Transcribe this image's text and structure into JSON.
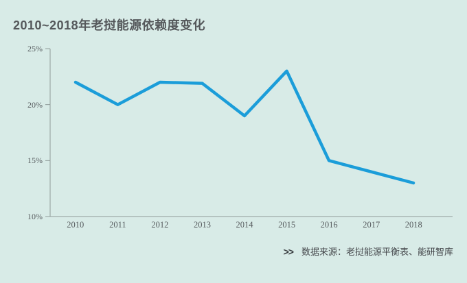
{
  "chart_data": {
    "type": "line",
    "title": "2010~2018年老挝能源依赖度变化",
    "categories": [
      "2010",
      "2011",
      "2012",
      "2013",
      "2014",
      "2015",
      "2016",
      "2017",
      "2018"
    ],
    "values": [
      22,
      20,
      22,
      21.9,
      19,
      23,
      15,
      14,
      13
    ],
    "xlabel": "",
    "ylabel": "",
    "ylim": [
      10,
      25
    ],
    "y_ticks": [
      25,
      20,
      15,
      10
    ],
    "y_tick_labels": [
      "25%",
      "20%",
      "15%",
      "10%"
    ],
    "grid": false,
    "legend": false,
    "markers": false
  },
  "source": {
    "arrows": ">>",
    "label": "数据来源：老挝能源平衡表、能研智库"
  },
  "colors": {
    "background": "#d8ebe7",
    "line": "#1b9dd9",
    "title_text": "#55585b",
    "axis": "#8f9b99",
    "tick_text": "#565b5e",
    "source_text": "#46494d",
    "chevron": "#3a3e41"
  }
}
